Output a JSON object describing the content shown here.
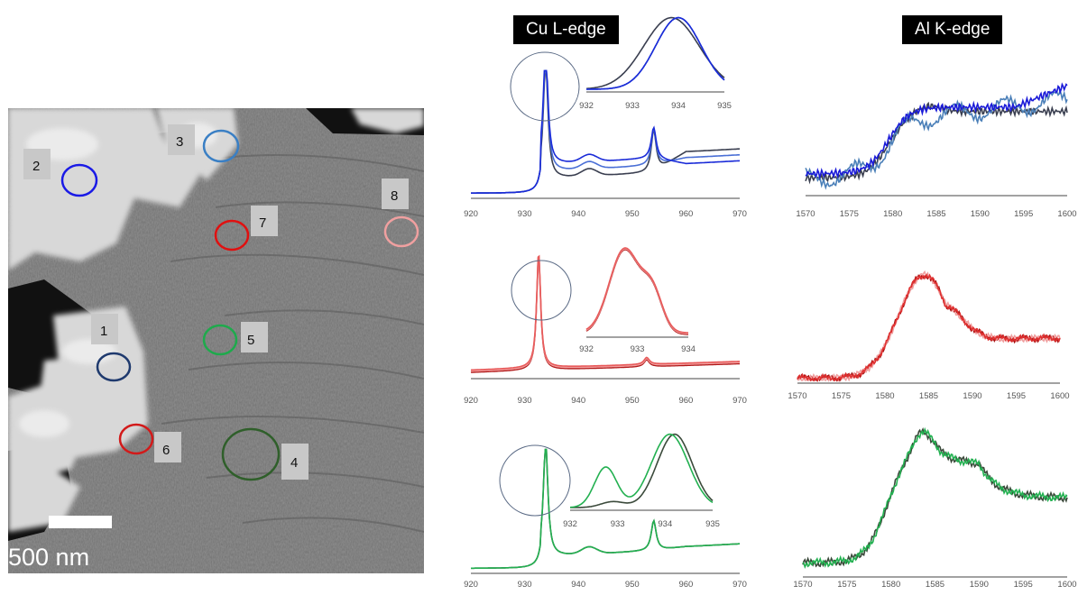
{
  "micrograph": {
    "scale_bar_label": "500 nm",
    "regions": [
      {
        "label": "1",
        "color": "#1f3a6e"
      },
      {
        "label": "2",
        "color": "#1a1ae6"
      },
      {
        "label": "3",
        "color": "#3a7fc4"
      },
      {
        "label": "4",
        "color": "#2f5f2a"
      },
      {
        "label": "5",
        "color": "#1eaa4c"
      },
      {
        "label": "6",
        "color": "#d21a1a"
      },
      {
        "label": "7",
        "color": "#e01010"
      },
      {
        "label": "8",
        "color": "#f0a0a0"
      }
    ]
  },
  "headers": {
    "cu": "Cu L-edge",
    "al": "Al K-edge"
  },
  "chart_data": [
    {
      "id": "cu-blue",
      "type": "line",
      "xlim": [
        920,
        970
      ],
      "xticks": [
        920,
        930,
        940,
        950,
        960,
        970
      ],
      "series": [
        {
          "color": "#3a3f50"
        },
        {
          "color": "#4a6fd6"
        },
        {
          "color": "#1a2bd8"
        }
      ],
      "inset": {
        "xlim": [
          932,
          935
        ],
        "xticks": [
          932,
          933,
          934,
          935
        ]
      }
    },
    {
      "id": "cu-red",
      "type": "line",
      "xlim": [
        920,
        970
      ],
      "xticks": [
        920,
        930,
        940,
        950,
        960,
        970
      ],
      "series": [
        {
          "color": "#b01818"
        },
        {
          "color": "#f2a0a0"
        },
        {
          "color": "#e85a5a"
        }
      ],
      "inset": {
        "xlim": [
          932,
          934
        ],
        "xticks": [
          932,
          933,
          934
        ]
      }
    },
    {
      "id": "cu-green",
      "type": "line",
      "xlim": [
        920,
        970
      ],
      "xticks": [
        920,
        930,
        940,
        950,
        960,
        970
      ],
      "series": [
        {
          "color": "#3b4a3b"
        },
        {
          "color": "#22b050"
        }
      ],
      "inset": {
        "xlim": [
          932,
          935
        ],
        "xticks": [
          932,
          933,
          934,
          935
        ]
      }
    },
    {
      "id": "al-blue",
      "type": "line",
      "xlim": [
        1570,
        1600
      ],
      "xticks": [
        1570,
        1575,
        1580,
        1585,
        1590,
        1595,
        1600
      ],
      "series": [
        {
          "color": "#3a3f50"
        },
        {
          "color": "#4a7fb8"
        },
        {
          "color": "#1a1ad8"
        }
      ]
    },
    {
      "id": "al-red",
      "type": "line",
      "xlim": [
        1570,
        1600
      ],
      "xticks": [
        1570,
        1575,
        1580,
        1585,
        1590,
        1595,
        1600
      ],
      "series": [
        {
          "color": "#a01010"
        },
        {
          "color": "#f0a0a0"
        },
        {
          "color": "#e03030"
        }
      ]
    },
    {
      "id": "al-green",
      "type": "line",
      "xlim": [
        1570,
        1600
      ],
      "xticks": [
        1570,
        1575,
        1580,
        1585,
        1590,
        1595,
        1600
      ],
      "series": [
        {
          "color": "#3b4a3b"
        },
        {
          "color": "#22b050"
        }
      ]
    }
  ]
}
